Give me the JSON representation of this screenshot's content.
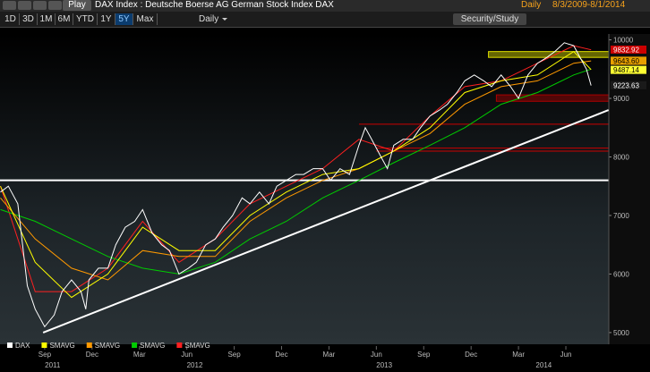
{
  "toolbar": {
    "play": "Play",
    "title": "DAX Index : Deutsche Boerse AG German Stock Index DAX",
    "frequency_label": "Daily",
    "date_range": "8/3/2009-8/1/2014",
    "ranges": [
      "1D",
      "3D",
      "1M",
      "6M",
      "YTD",
      "1Y",
      "5Y",
      "Max"
    ],
    "selected_range": 6,
    "frequency": "Daily",
    "study_button": "Security/Study"
  },
  "chart_data": {
    "type": "line",
    "xlim": [
      -0.83,
      37.72
    ],
    "ylim": [
      4800,
      10100
    ],
    "xticks": [
      {
        "value": 2,
        "label": "Sep"
      },
      {
        "value": 5,
        "label": "Dec"
      },
      {
        "value": 8,
        "label": "Mar"
      },
      {
        "value": 11,
        "label": "Jun"
      },
      {
        "value": 14,
        "label": "Sep"
      },
      {
        "value": 17,
        "label": "Dec"
      },
      {
        "value": 20,
        "label": "Mar"
      },
      {
        "value": 23,
        "label": "Jun"
      },
      {
        "value": 26,
        "label": "Sep"
      },
      {
        "value": 29,
        "label": "Dec"
      },
      {
        "value": 32,
        "label": "Mar"
      },
      {
        "value": 35,
        "label": "Jun"
      }
    ],
    "year_labels": [
      {
        "value": 2.5,
        "label": "2011"
      },
      {
        "value": 11.5,
        "label": "2012"
      },
      {
        "value": 23.5,
        "label": "2013"
      },
      {
        "value": 33.6,
        "label": "2014"
      }
    ],
    "yticks": [
      5000,
      6000,
      7000,
      8000,
      9000,
      10000
    ],
    "series": [
      {
        "name": "DAX",
        "color": "#ffffff",
        "width": 1,
        "x": [
          -0.8,
          -0.3,
          0.3,
          0.6,
          0.9,
          1.4,
          2.0,
          2.6,
          3.1,
          3.7,
          4.3,
          4.6,
          4.8,
          5.4,
          6.0,
          6.5,
          7.1,
          7.7,
          8.2,
          8.8,
          9.4,
          9.9,
          10.5,
          11.1,
          11.6,
          12.2,
          12.8,
          13.3,
          13.9,
          14.5,
          15.0,
          15.6,
          16.2,
          16.7,
          17.3,
          17.9,
          18.4,
          19.0,
          19.6,
          20.1,
          20.7,
          21.3,
          21.9,
          22.3,
          22.7,
          23.3,
          23.7,
          24.1,
          24.7,
          25.3,
          25.8,
          26.4,
          27.0,
          27.5,
          28.1,
          28.6,
          29.2,
          29.8,
          30.3,
          30.9,
          31.5,
          32.0,
          32.6,
          33.2,
          33.8,
          34.3,
          34.9,
          35.5,
          35.9,
          36.3,
          36.6
        ],
        "values": [
          7400,
          7500,
          7200,
          6500,
          5800,
          5400,
          5100,
          5300,
          5700,
          5900,
          5700,
          5400,
          5900,
          6100,
          6100,
          6500,
          6800,
          6900,
          7100,
          6700,
          6500,
          6400,
          6000,
          6100,
          6200,
          6500,
          6600,
          6800,
          7000,
          7300,
          7200,
          7400,
          7200,
          7500,
          7600,
          7700,
          7700,
          7800,
          7800,
          7600,
          7800,
          7700,
          8200,
          8500,
          8300,
          8000,
          7800,
          8200,
          8300,
          8300,
          8500,
          8700,
          8800,
          8900,
          9100,
          9300,
          9400,
          9300,
          9200,
          9400,
          9200,
          9000,
          9400,
          9600,
          9700,
          9800,
          9950,
          9900,
          9700,
          9500,
          9220
        ]
      },
      {
        "name": "SMAVG",
        "color": "#ffff00",
        "width": 1,
        "x": [
          -0.8,
          1.4,
          3.7,
          6.0,
          8.2,
          10.5,
          12.8,
          15.0,
          17.3,
          19.6,
          21.9,
          24.1,
          26.4,
          28.6,
          30.9,
          33.2,
          35.5,
          36.6
        ],
        "values": [
          7500,
          6200,
          5600,
          6000,
          6800,
          6400,
          6400,
          7000,
          7400,
          7700,
          7800,
          8100,
          8500,
          9100,
          9300,
          9400,
          9800,
          9490
        ]
      },
      {
        "name": "SMAVG",
        "color": "#ff9900",
        "width": 1,
        "x": [
          -0.8,
          1.4,
          3.7,
          6.0,
          8.2,
          10.5,
          12.8,
          15.0,
          17.3,
          19.6,
          21.9,
          24.1,
          26.4,
          28.6,
          30.9,
          33.2,
          35.5,
          36.6
        ],
        "values": [
          7300,
          6600,
          6100,
          5900,
          6400,
          6300,
          6300,
          6900,
          7300,
          7600,
          7800,
          8100,
          8400,
          8900,
          9200,
          9300,
          9600,
          9640
        ]
      },
      {
        "name": "SMAVG",
        "color": "#00cc00",
        "width": 1,
        "x": [
          -0.8,
          1.4,
          3.7,
          6.0,
          8.2,
          10.5,
          12.8,
          15.0,
          17.3,
          19.6,
          21.9,
          24.1,
          26.4,
          28.6,
          30.9,
          33.2,
          35.5,
          36.6
        ],
        "values": [
          7100,
          6900,
          6600,
          6300,
          6100,
          6000,
          6200,
          6600,
          6900,
          7300,
          7600,
          7900,
          8200,
          8500,
          8900,
          9100,
          9400,
          9500
        ]
      },
      {
        "name": "SMAVG",
        "color": "#ff2020",
        "width": 1,
        "x": [
          -0.8,
          1.4,
          3.7,
          6.0,
          8.2,
          10.5,
          12.8,
          15.0,
          17.3,
          19.6,
          21.9,
          24.1,
          26.4,
          28.6,
          30.9,
          33.2,
          35.5,
          36.6
        ],
        "values": [
          7500,
          5700,
          5700,
          6100,
          6900,
          6200,
          6600,
          7200,
          7500,
          7800,
          8300,
          8100,
          8700,
          9200,
          9300,
          9600,
          9900,
          9830
        ]
      }
    ],
    "price_tags": [
      {
        "value": 9832.92,
        "label": "9832.92",
        "color": "#cc0000",
        "text_color": "#ffffff"
      },
      {
        "value": 9643.6,
        "label": "9643.60",
        "color": "#e8a000",
        "text_color": "#000000"
      },
      {
        "value": 9487.14,
        "label": "9487.14",
        "color": "#ffff33",
        "text_color": "#000000"
      },
      {
        "value": 9223.63,
        "label": "9223.63",
        "color": "#1a1a1a",
        "text_color": "#ffffff"
      }
    ],
    "levels": [
      {
        "y": 7600,
        "x0": -0.83,
        "color": "#ffffff",
        "width": 2
      },
      {
        "y": 8560,
        "x0": 21.9,
        "color": "#cc0000",
        "width": 1
      },
      {
        "y": 8150,
        "x0": 23.0,
        "color": "#cc0000",
        "width": 1
      },
      {
        "y": 8100,
        "x0": 23.0,
        "color": "#cc0000",
        "width": 1
      }
    ],
    "bands": [
      {
        "y": [
          8950,
          9060
        ],
        "x0": 30.6,
        "color": "#aa0000"
      },
      {
        "y": [
          9700,
          9800
        ],
        "x0": 30.1,
        "color": "#dddd00"
      }
    ],
    "trendline": {
      "x": [
        1.9,
        37.7
      ],
      "y": [
        5000,
        8800
      ],
      "color": "#ffffff"
    }
  }
}
